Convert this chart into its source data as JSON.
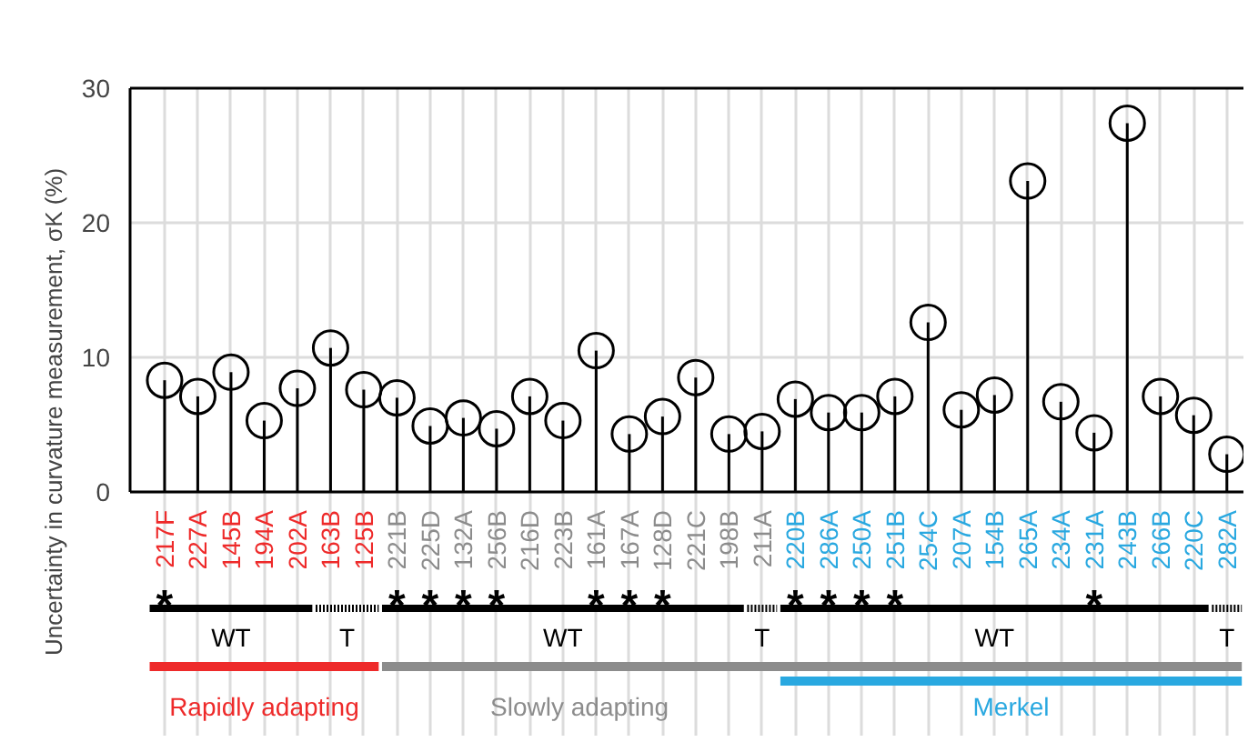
{
  "chart_data": {
    "type": "lollipop",
    "ylabel": "Uncertainty in curvature measurement, σK (%)",
    "categories": [
      "217F",
      "227A",
      "145B",
      "194A",
      "202A",
      "163B",
      "125B",
      "221B",
      "225D",
      "132A",
      "256B",
      "216D",
      "223B",
      "161A",
      "167A",
      "128D",
      "221C",
      "198B",
      "211A",
      "220B",
      "286A",
      "250A",
      "251B",
      "254C",
      "207A",
      "154B",
      "265A",
      "234A",
      "231A",
      "243B",
      "266B",
      "220C",
      "282A"
    ],
    "values": [
      8.3,
      7.1,
      8.9,
      5.3,
      7.7,
      10.7,
      7.6,
      7.0,
      4.9,
      5.5,
      4.7,
      7.1,
      5.3,
      10.5,
      4.3,
      5.6,
      8.5,
      4.3,
      4.5,
      6.9,
      5.9,
      5.9,
      7.1,
      12.6,
      6.1,
      7.2,
      23.1,
      6.7,
      4.4,
      27.4,
      7.1,
      5.7,
      2.8
    ],
    "value_labels": [
      "*",
      null,
      null,
      null,
      null,
      null,
      null,
      "*",
      "*",
      "*",
      "*",
      null,
      null,
      "*",
      "*",
      "*",
      null,
      null,
      null,
      "*",
      "*",
      "*",
      "*",
      null,
      null,
      null,
      null,
      null,
      "*",
      null,
      null,
      null,
      null
    ],
    "color": "#000000",
    "marker": "circle",
    "ylim": [
      0,
      30
    ],
    "yticks": [
      0,
      10,
      20,
      30
    ],
    "grid": true,
    "annotations": [
      "WT",
      "T",
      "WT",
      "T",
      "WT",
      "T",
      "Rapidly adapting",
      "Slowly adapting",
      "Merkel"
    ]
  }
}
